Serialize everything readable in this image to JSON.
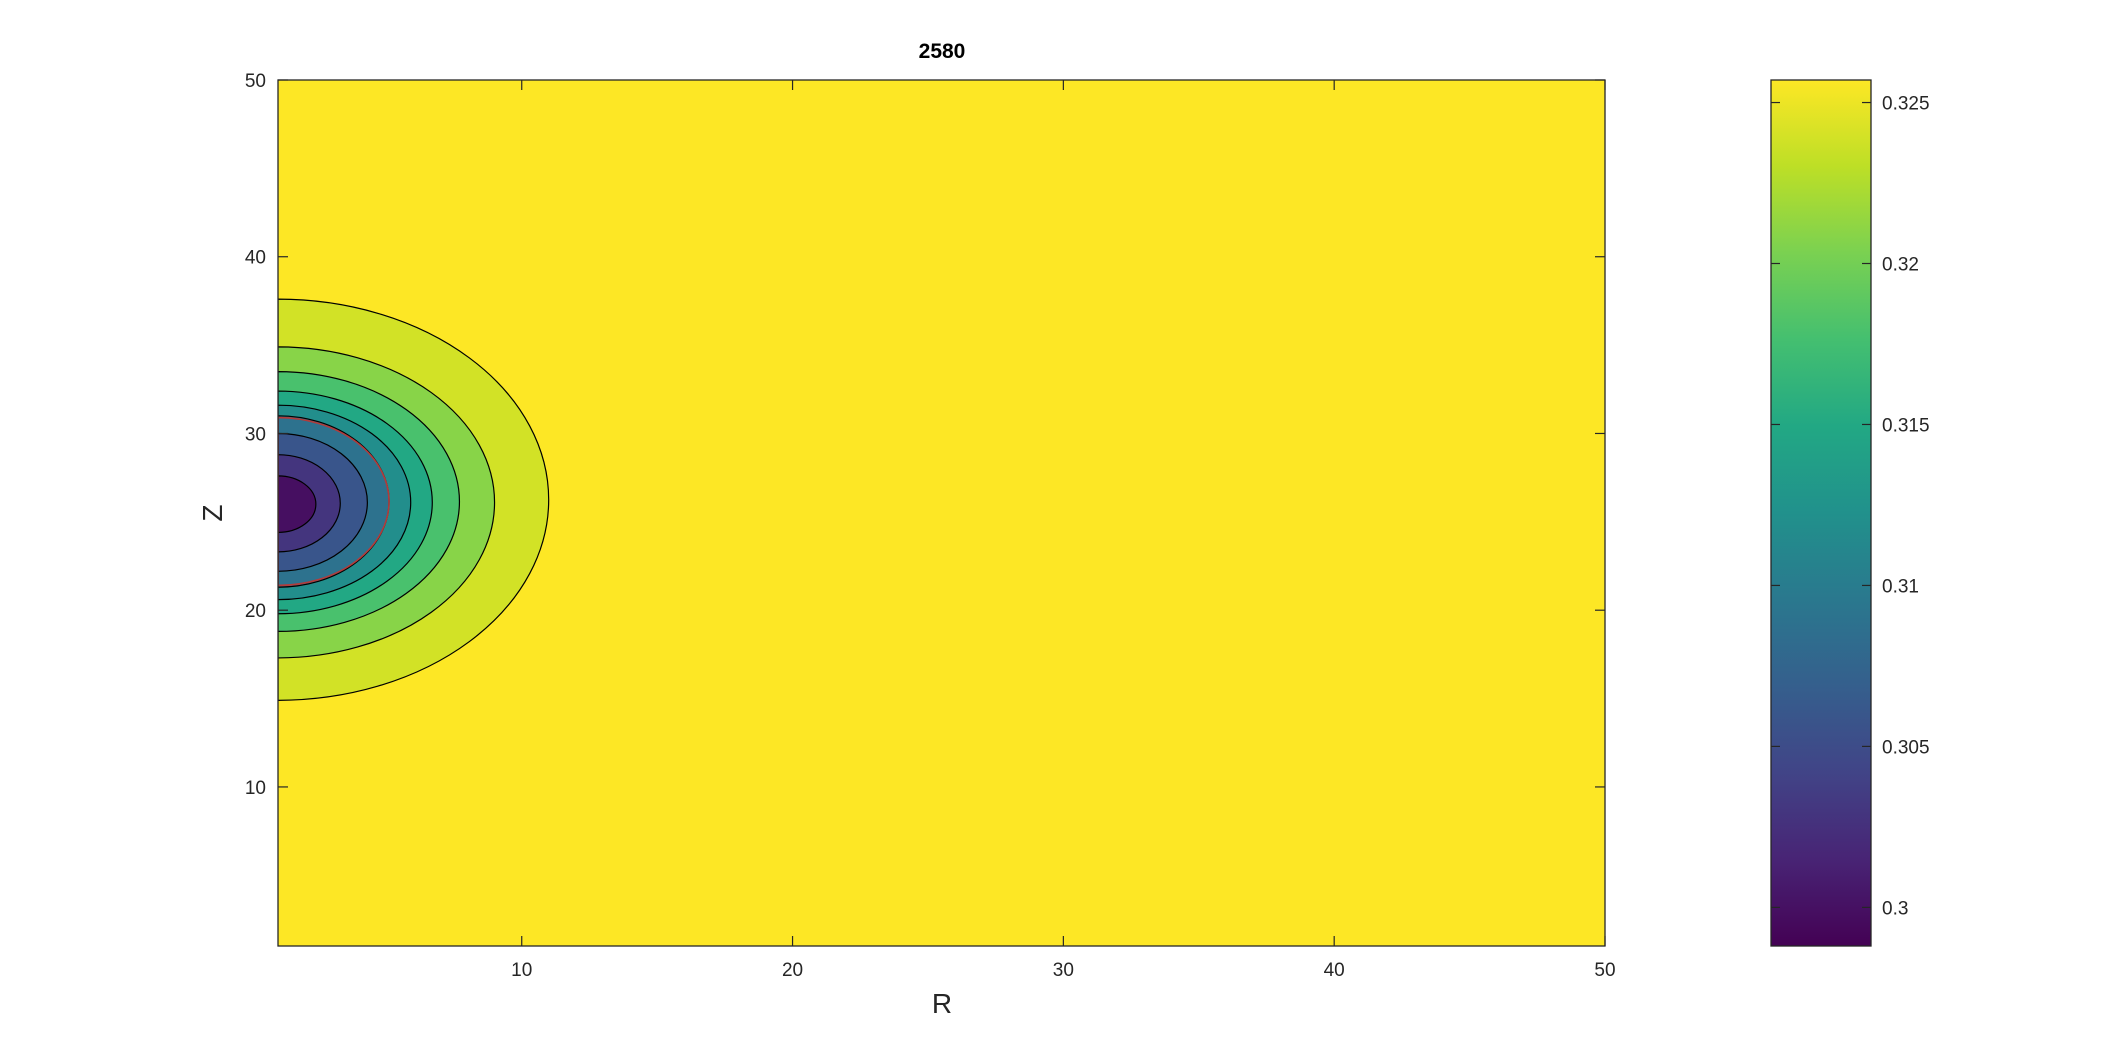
{
  "chart_data": {
    "type": "contour",
    "title": "2580",
    "xlabel": "R",
    "ylabel": "Z",
    "xlim": [
      1,
      50
    ],
    "ylim": [
      1,
      50
    ],
    "xticks": [
      10,
      20,
      30,
      40,
      50
    ],
    "yticks": [
      10,
      20,
      30,
      40,
      50
    ],
    "colormap": "viridis",
    "colorbar": {
      "position": "right",
      "limits": [
        0.2988,
        0.3257
      ],
      "ticks": [
        0.3,
        0.305,
        0.31,
        0.315,
        0.32,
        0.325
      ],
      "ticklabels": [
        "0.3",
        "0.305",
        "0.31",
        "0.315",
        "0.32",
        "0.325"
      ]
    },
    "contours": {
      "center": {
        "r": 1,
        "z": 25.9
      },
      "background_value": 0.3257,
      "line_color": "#000000",
      "highlight_line_color": "#b23b3b",
      "levels": [
        {
          "value": 0.3239,
          "r_extent": 11.0,
          "z_min": 14.9,
          "z_max": 37.6
        },
        {
          "value": 0.3209,
          "r_extent": 9.0,
          "z_min": 17.3,
          "z_max": 34.9
        },
        {
          "value": 0.3179,
          "r_extent": 7.7,
          "z_min": 18.8,
          "z_max": 33.5
        },
        {
          "value": 0.3149,
          "r_extent": 6.7,
          "z_min": 19.8,
          "z_max": 32.4
        },
        {
          "value": 0.3119,
          "r_extent": 5.9,
          "z_min": 20.6,
          "z_max": 31.6
        },
        {
          "value": 0.3089,
          "r_extent": 5.1,
          "z_min": 21.3,
          "z_max": 31.0
        },
        {
          "value": 0.3059,
          "r_extent": 4.3,
          "z_min": 22.2,
          "z_max": 30.0
        },
        {
          "value": 0.3029,
          "r_extent": 3.3,
          "z_min": 23.3,
          "z_max": 28.8
        },
        {
          "value": 0.2999,
          "r_extent": 2.4,
          "z_min": 24.4,
          "z_max": 27.6
        }
      ],
      "highlight_level": {
        "r_extent": 5.1,
        "z_min": 21.4,
        "z_max": 30.9
      }
    }
  }
}
